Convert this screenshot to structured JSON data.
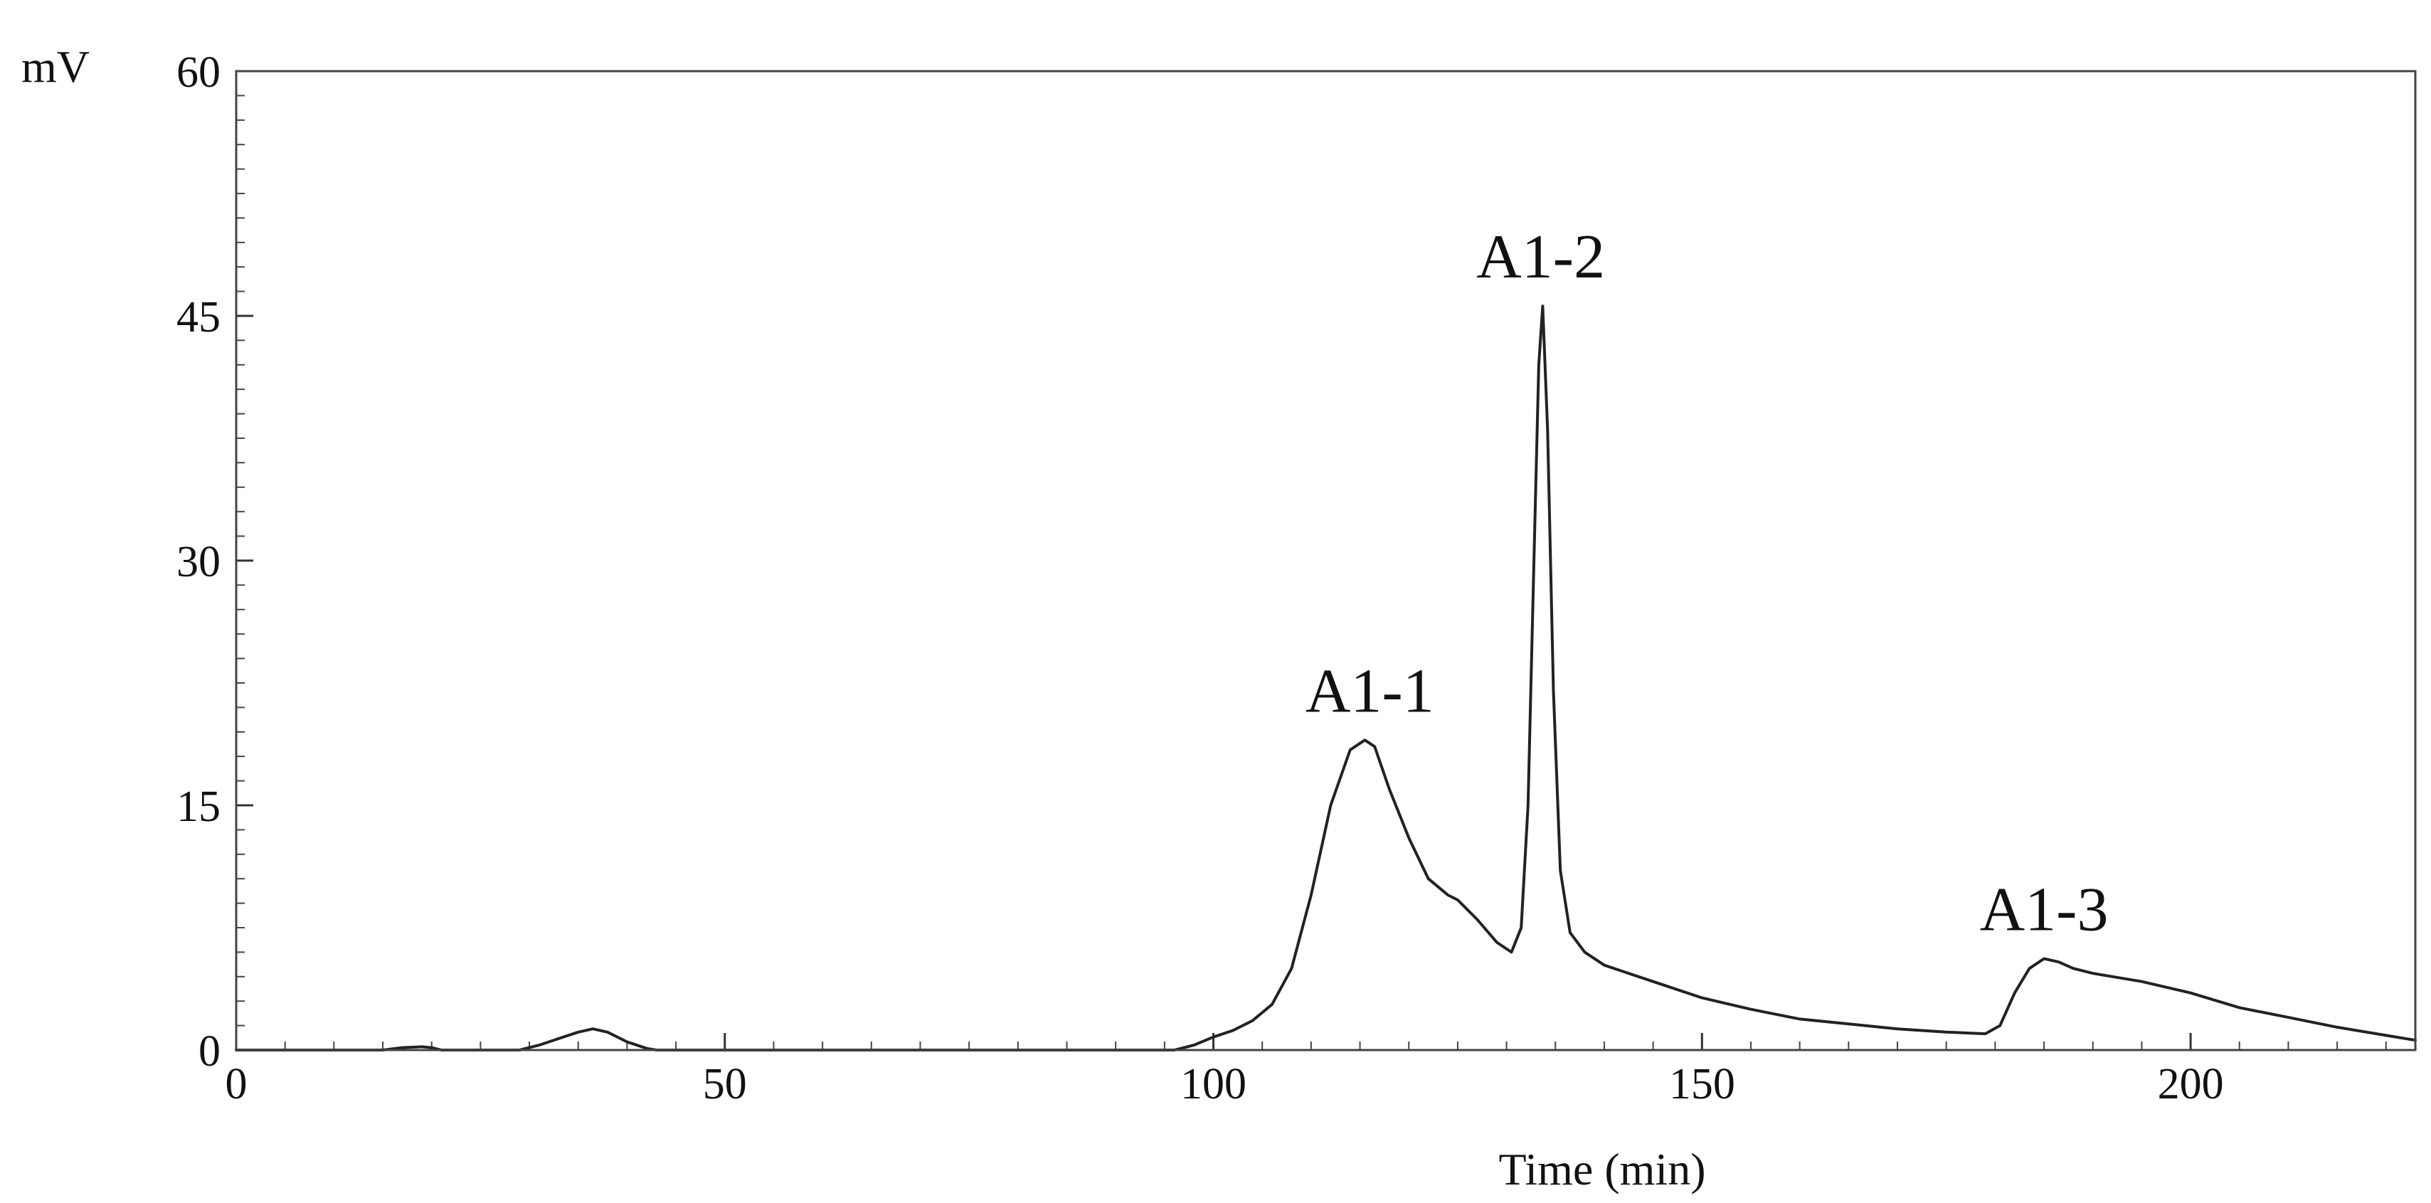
{
  "chart_data": {
    "type": "line",
    "title": "",
    "xlabel": "Time (min)",
    "ylabel": "mV",
    "xlim": [
      0,
      223
    ],
    "ylim": [
      0,
      60
    ],
    "x_ticks": [
      0,
      50,
      100,
      150,
      200
    ],
    "y_ticks": [
      0,
      15,
      30,
      45,
      60
    ],
    "grid": false,
    "legend": "none",
    "line_color": "#222222",
    "series": [
      {
        "x": [
          0,
          15,
          17,
          19,
          20,
          21,
          29,
          31,
          33,
          35,
          36.5,
          38,
          40,
          42,
          43,
          60,
          80,
          96,
          98,
          100,
          102,
          104,
          106,
          108,
          110,
          112,
          114,
          115.5,
          116.5,
          118,
          120,
          122,
          124,
          125,
          127,
          129,
          130.5,
          131.5,
          132.2,
          132.8,
          133.3,
          133.7,
          134.2,
          134.8,
          135.5,
          136.5,
          138,
          140,
          145,
          150,
          155,
          160,
          165,
          170,
          175,
          179,
          180.5,
          182,
          183.5,
          185,
          186.5,
          188,
          190,
          195,
          200,
          205,
          210,
          215,
          220,
          223
        ],
        "y": [
          0,
          0,
          0.15,
          0.2,
          0.15,
          0,
          0,
          0.3,
          0.7,
          1.1,
          1.3,
          1.1,
          0.5,
          0.1,
          0,
          0,
          0,
          0,
          0.3,
          0.8,
          1.2,
          1.8,
          2.8,
          5,
          9.5,
          15,
          18.4,
          19,
          18.6,
          16,
          13,
          10.5,
          9.5,
          9.2,
          8,
          6.6,
          6,
          7.5,
          15,
          30,
          42,
          45.6,
          38,
          22,
          11,
          7.2,
          6,
          5.2,
          4.2,
          3.2,
          2.5,
          1.9,
          1.6,
          1.3,
          1.1,
          1.0,
          1.5,
          3.5,
          5,
          5.6,
          5.4,
          5,
          4.7,
          4.2,
          3.5,
          2.6,
          2,
          1.4,
          0.9,
          0.6
        ]
      }
    ],
    "annotations": [
      {
        "text": "A1-1",
        "x": 116,
        "y": 19
      },
      {
        "text": "A1-2",
        "x": 133.5,
        "y": 45.6
      },
      {
        "text": "A1-3",
        "x": 185,
        "y": 5.6
      }
    ]
  }
}
